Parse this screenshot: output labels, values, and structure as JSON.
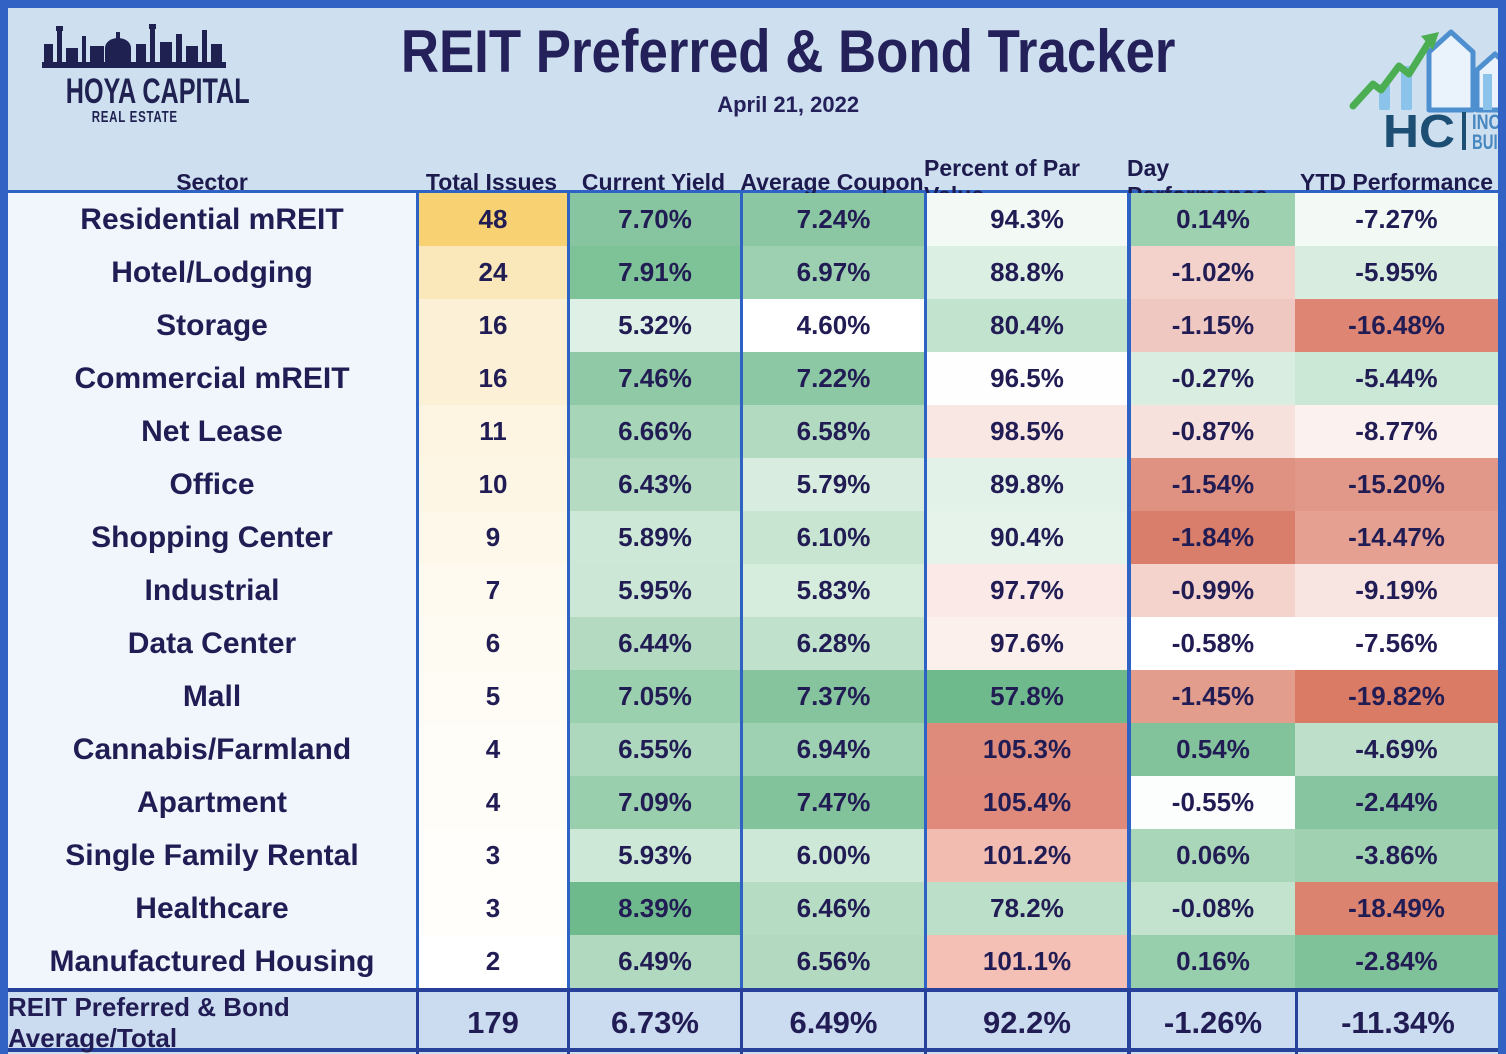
{
  "header": {
    "title": "REIT Preferred & Bond Tracker",
    "date": "April 21, 2022",
    "hoya_logo": {
      "line1": "HOYA CAPITAL",
      "line2": "REAL ESTATE"
    },
    "hci_logo": {
      "hc": "HC",
      "line1": "INCOME",
      "line2": "BUILDER"
    }
  },
  "colors": {
    "page_border": "#3263C4",
    "grid_line": "#2E63C5",
    "footer_border": "#27419B",
    "header_bg": "#CEDFF0",
    "sector_col_bg": "#F0F6FB",
    "footer_bg": "#CBDCF0",
    "text_navy": "#211D54",
    "logo_green": "#4CAE52",
    "logo_light_blue": "#8BC3EA",
    "logo_blue_text": "#4788C0",
    "logo_dark_blue": "#1D4E73"
  },
  "table": {
    "columns": [
      {
        "key": "sector",
        "label": "Sector"
      },
      {
        "key": "issues",
        "label": "Total Issues"
      },
      {
        "key": "yield",
        "label": "Current Yield"
      },
      {
        "key": "coupon",
        "label": "Average Coupon"
      },
      {
        "key": "par",
        "label": "Percent of Par Value"
      },
      {
        "key": "day",
        "label": "Day Performance"
      },
      {
        "key": "ytd",
        "label": "YTD Performance"
      }
    ],
    "rows": [
      {
        "sector": "Residential mREIT",
        "issues": "48",
        "yield": "7.70%",
        "coupon": "7.24%",
        "par": "94.3%",
        "day": "0.14%",
        "ytd": "-7.27%",
        "colors": {
          "issues": "#F7D172",
          "yield": "#87C5A0",
          "coupon": "#8CC7A3",
          "par": "#F3F9F5",
          "day": "#9DD1AF",
          "ytd": "#F3F9F5"
        }
      },
      {
        "sector": "Hotel/Lodging",
        "issues": "24",
        "yield": "7.91%",
        "coupon": "6.97%",
        "par": "88.8%",
        "day": "-1.02%",
        "ytd": "-5.95%",
        "colors": {
          "issues": "#FAE8BA",
          "yield": "#7EC298",
          "coupon": "#9DD0B0",
          "par": "#DCEFE3",
          "day": "#F3D2CC",
          "ytd": "#D8EDE0"
        }
      },
      {
        "sector": "Storage",
        "issues": "16",
        "yield": "5.32%",
        "coupon": "4.60%",
        "par": "80.4%",
        "day": "-1.15%",
        "ytd": "-16.48%",
        "colors": {
          "issues": "#FCF1D6",
          "yield": "#DFF0E6",
          "coupon": "#FFFFFF",
          "par": "#C2E3CE",
          "day": "#F0C8C2",
          "ytd": "#DE8673"
        }
      },
      {
        "sector": "Commercial mREIT",
        "issues": "16",
        "yield": "7.46%",
        "coupon": "7.22%",
        "par": "96.5%",
        "day": "-0.27%",
        "ytd": "-5.44%",
        "colors": {
          "issues": "#FCF1D6",
          "yield": "#8FC9A6",
          "coupon": "#8DC8A4",
          "par": "#FDFEFD",
          "day": "#D9EEE1",
          "ytd": "#CBE7D5"
        }
      },
      {
        "sector": "Net Lease",
        "issues": "11",
        "yield": "6.66%",
        "coupon": "6.58%",
        "par": "98.5%",
        "day": "-0.87%",
        "ytd": "-8.77%",
        "colors": {
          "issues": "#FDF5E2",
          "yield": "#A7D5B7",
          "coupon": "#B2DAC0",
          "par": "#F9E7E4",
          "day": "#F6E1DD",
          "ytd": "#FBF1EF"
        }
      },
      {
        "sector": "Office",
        "issues": "10",
        "yield": "6.43%",
        "coupon": "5.79%",
        "par": "89.8%",
        "day": "-1.54%",
        "ytd": "-15.20%",
        "colors": {
          "issues": "#FDF6E5",
          "yield": "#B5DCC3",
          "coupon": "#D8EDDF",
          "par": "#E3F2E9",
          "day": "#E09282",
          "ytd": "#E29889"
        }
      },
      {
        "sector": "Shopping Center",
        "issues": "9",
        "yield": "5.89%",
        "coupon": "6.10%",
        "par": "90.4%",
        "day": "-1.84%",
        "ytd": "-14.47%",
        "colors": {
          "issues": "#FDF8E9",
          "yield": "#CEE8D7",
          "coupon": "#C8E5D2",
          "par": "#E5F3EB",
          "day": "#D97E6B",
          "ytd": "#E5A091"
        }
      },
      {
        "sector": "Industrial",
        "issues": "7",
        "yield": "5.95%",
        "coupon": "5.83%",
        "par": "97.7%",
        "day": "-0.99%",
        "ytd": "-9.19%",
        "colors": {
          "issues": "#FEFAEF",
          "yield": "#CCE7D5",
          "coupon": "#D6ECDD",
          "par": "#FAE9E6",
          "day": "#F4D3CD",
          "ytd": "#F8E5E1"
        }
      },
      {
        "sector": "Data Center",
        "issues": "6",
        "yield": "6.44%",
        "coupon": "6.28%",
        "par": "97.6%",
        "day": "-0.58%",
        "ytd": "-7.56%",
        "colors": {
          "issues": "#FEFBF2",
          "yield": "#B4DBC2",
          "coupon": "#C0E1CC",
          "par": "#FCF0ED",
          "day": "#FFFFFF",
          "ytd": "#FFFFFF"
        }
      },
      {
        "sector": "Mall",
        "issues": "5",
        "yield": "7.05%",
        "coupon": "7.37%",
        "par": "57.8%",
        "day": "-1.45%",
        "ytd": "-19.82%",
        "colors": {
          "issues": "#FEFCF5",
          "yield": "#9BD0AE",
          "coupon": "#85C49D",
          "par": "#6FBA8D",
          "day": "#E39D8D",
          "ytd": "#DA7B65"
        }
      },
      {
        "sector": "Cannabis/Farmland",
        "issues": "4",
        "yield": "6.55%",
        "coupon": "6.94%",
        "par": "105.3%",
        "day": "0.54%",
        "ytd": "-4.69%",
        "colors": {
          "issues": "#FEFDF8",
          "yield": "#AED8BD",
          "coupon": "#9ED1B1",
          "par": "#DF8B7B",
          "day": "#83C39B",
          "ytd": "#BEE0CA"
        }
      },
      {
        "sector": "Apartment",
        "issues": "4",
        "yield": "7.09%",
        "coupon": "7.47%",
        "par": "105.4%",
        "day": "-0.55%",
        "ytd": "-2.44%",
        "colors": {
          "issues": "#FEFDF8",
          "yield": "#99CFAD",
          "coupon": "#83C39B",
          "par": "#DF8A7A",
          "day": "#FCFEFD",
          "ytd": "#86C59F"
        }
      },
      {
        "sector": "Single Family Rental",
        "issues": "3",
        "yield": "5.93%",
        "coupon": "6.00%",
        "par": "101.2%",
        "day": "0.06%",
        "ytd": "-3.86%",
        "colors": {
          "issues": "#FFFEFB",
          "yield": "#CDE8D6",
          "coupon": "#CEE8D7",
          "par": "#F3BCB1",
          "day": "#A9D6B8",
          "ytd": "#A0D2B2"
        }
      },
      {
        "sector": "Healthcare",
        "issues": "3",
        "yield": "8.39%",
        "coupon": "6.46%",
        "par": "78.2%",
        "day": "-0.08%",
        "ytd": "-18.49%",
        "colors": {
          "issues": "#FFFEFB",
          "yield": "#6FBA8D",
          "coupon": "#B7DCC4",
          "par": "#BBDFC8",
          "day": "#C4E3CF",
          "ytd": "#DC8370"
        }
      },
      {
        "sector": "Manufactured Housing",
        "issues": "2",
        "yield": "6.49%",
        "coupon": "6.56%",
        "par": "101.1%",
        "day": "0.16%",
        "ytd": "-2.84%",
        "colors": {
          "issues": "#FFFFFF",
          "yield": "#B1D9BF",
          "coupon": "#B3DAC1",
          "par": "#F4BFB5",
          "day": "#97CEAB",
          "ytd": "#7FC299"
        }
      }
    ]
  },
  "footer": {
    "label": "REIT Preferred & Bond Average/Total",
    "issues": "179",
    "yield": "6.73%",
    "coupon": "6.49%",
    "par": "92.2%",
    "day": "-1.26%",
    "ytd": "-11.34%"
  },
  "chart_data": {
    "type": "table",
    "title": "REIT Preferred & Bond Tracker",
    "date": "April 21, 2022",
    "columns": [
      "Sector",
      "Total Issues",
      "Current Yield %",
      "Average Coupon %",
      "Percent of Par Value %",
      "Day Performance %",
      "YTD Performance %"
    ],
    "rows": [
      [
        "Residential mREIT",
        48,
        7.7,
        7.24,
        94.3,
        0.14,
        -7.27
      ],
      [
        "Hotel/Lodging",
        24,
        7.91,
        6.97,
        88.8,
        -1.02,
        -5.95
      ],
      [
        "Storage",
        16,
        5.32,
        4.6,
        80.4,
        -1.15,
        -16.48
      ],
      [
        "Commercial mREIT",
        16,
        7.46,
        7.22,
        96.5,
        -0.27,
        -5.44
      ],
      [
        "Net Lease",
        11,
        6.66,
        6.58,
        98.5,
        -0.87,
        -8.77
      ],
      [
        "Office",
        10,
        6.43,
        5.79,
        89.8,
        -1.54,
        -15.2
      ],
      [
        "Shopping Center",
        9,
        5.89,
        6.1,
        90.4,
        -1.84,
        -14.47
      ],
      [
        "Industrial",
        7,
        5.95,
        5.83,
        97.7,
        -0.99,
        -9.19
      ],
      [
        "Data Center",
        6,
        6.44,
        6.28,
        97.6,
        -0.58,
        -7.56
      ],
      [
        "Mall",
        5,
        7.05,
        7.37,
        57.8,
        -1.45,
        -19.82
      ],
      [
        "Cannabis/Farmland",
        4,
        6.55,
        6.94,
        105.3,
        0.54,
        -4.69
      ],
      [
        "Apartment",
        4,
        7.09,
        7.47,
        105.4,
        -0.55,
        -2.44
      ],
      [
        "Single Family Rental",
        3,
        5.93,
        6.0,
        101.2,
        0.06,
        -3.86
      ],
      [
        "Healthcare",
        3,
        8.39,
        6.46,
        78.2,
        -0.08,
        -18.49
      ],
      [
        "Manufactured Housing",
        2,
        6.49,
        6.56,
        101.1,
        0.16,
        -2.84
      ]
    ],
    "totals_row": [
      "REIT Preferred & Bond Average/Total",
      179,
      6.73,
      6.49,
      92.2,
      -1.26,
      -11.34
    ],
    "color_coding": "green = favorable / higher yield or gain, red = decline or premium to par, yellow gradient = issue count"
  }
}
